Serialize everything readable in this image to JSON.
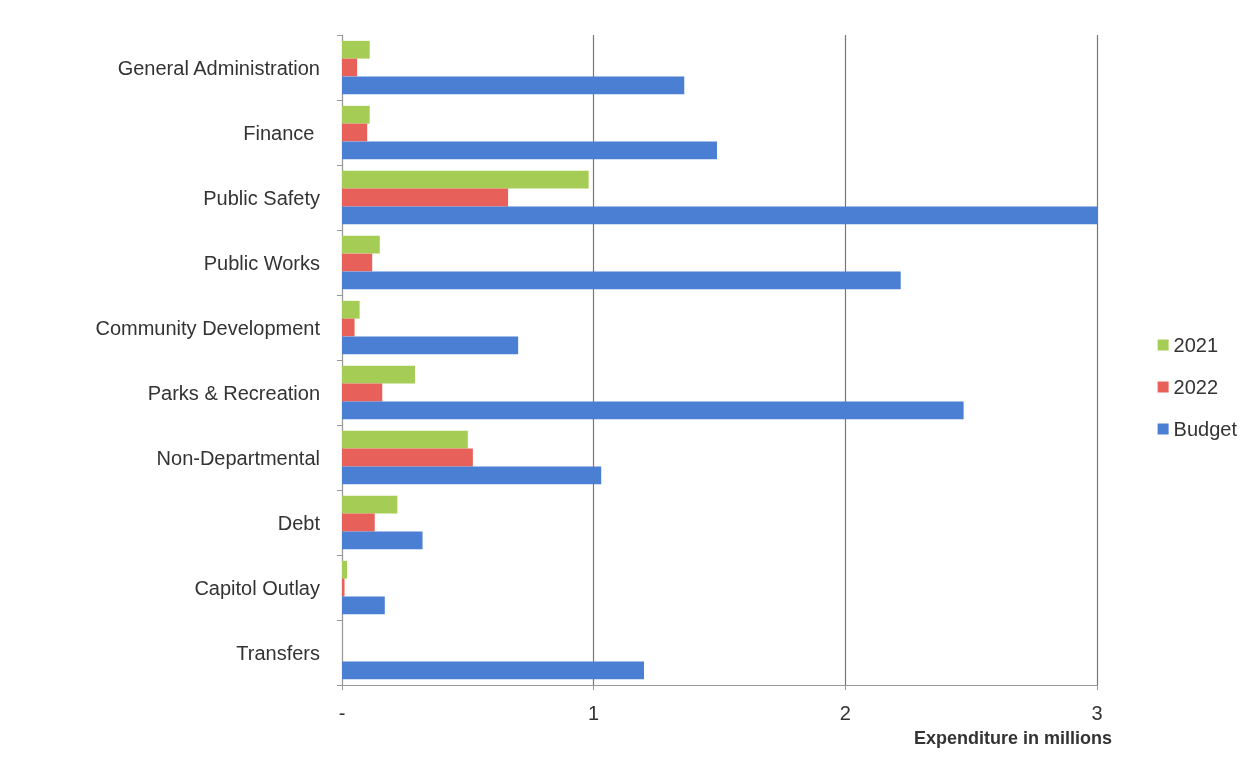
{
  "chart_data": {
    "type": "bar",
    "orientation": "horizontal",
    "xlabel": "Expenditure in millions",
    "categories": [
      "General Administration",
      "Finance ",
      "Public Safety",
      "Public Works",
      "Community Development",
      "Parks & Recreation",
      "Non-Departmental",
      "Debt",
      "Capitol Outlay",
      "Transfers"
    ],
    "series": [
      {
        "name": "2021",
        "color": "#a5cd55",
        "values": [
          0.11,
          0.11,
          0.98,
          0.15,
          0.07,
          0.29,
          0.5,
          0.22,
          0.02,
          null
        ]
      },
      {
        "name": "2022",
        "color": "#e8605a",
        "values": [
          0.06,
          0.1,
          0.66,
          0.12,
          0.05,
          0.16,
          0.52,
          0.13,
          0.01,
          null
        ]
      },
      {
        "name": "Budget",
        "color": "#4a7fd4",
        "values": [
          1.36,
          1.49,
          3.0,
          2.22,
          0.7,
          2.47,
          1.03,
          0.32,
          0.17,
          1.2
        ]
      }
    ],
    "xlim": [
      0,
      3
    ],
    "xticks": [
      {
        "value": 0,
        "label": "-"
      },
      1,
      2,
      3
    ],
    "grid": "x",
    "legend": "right"
  }
}
